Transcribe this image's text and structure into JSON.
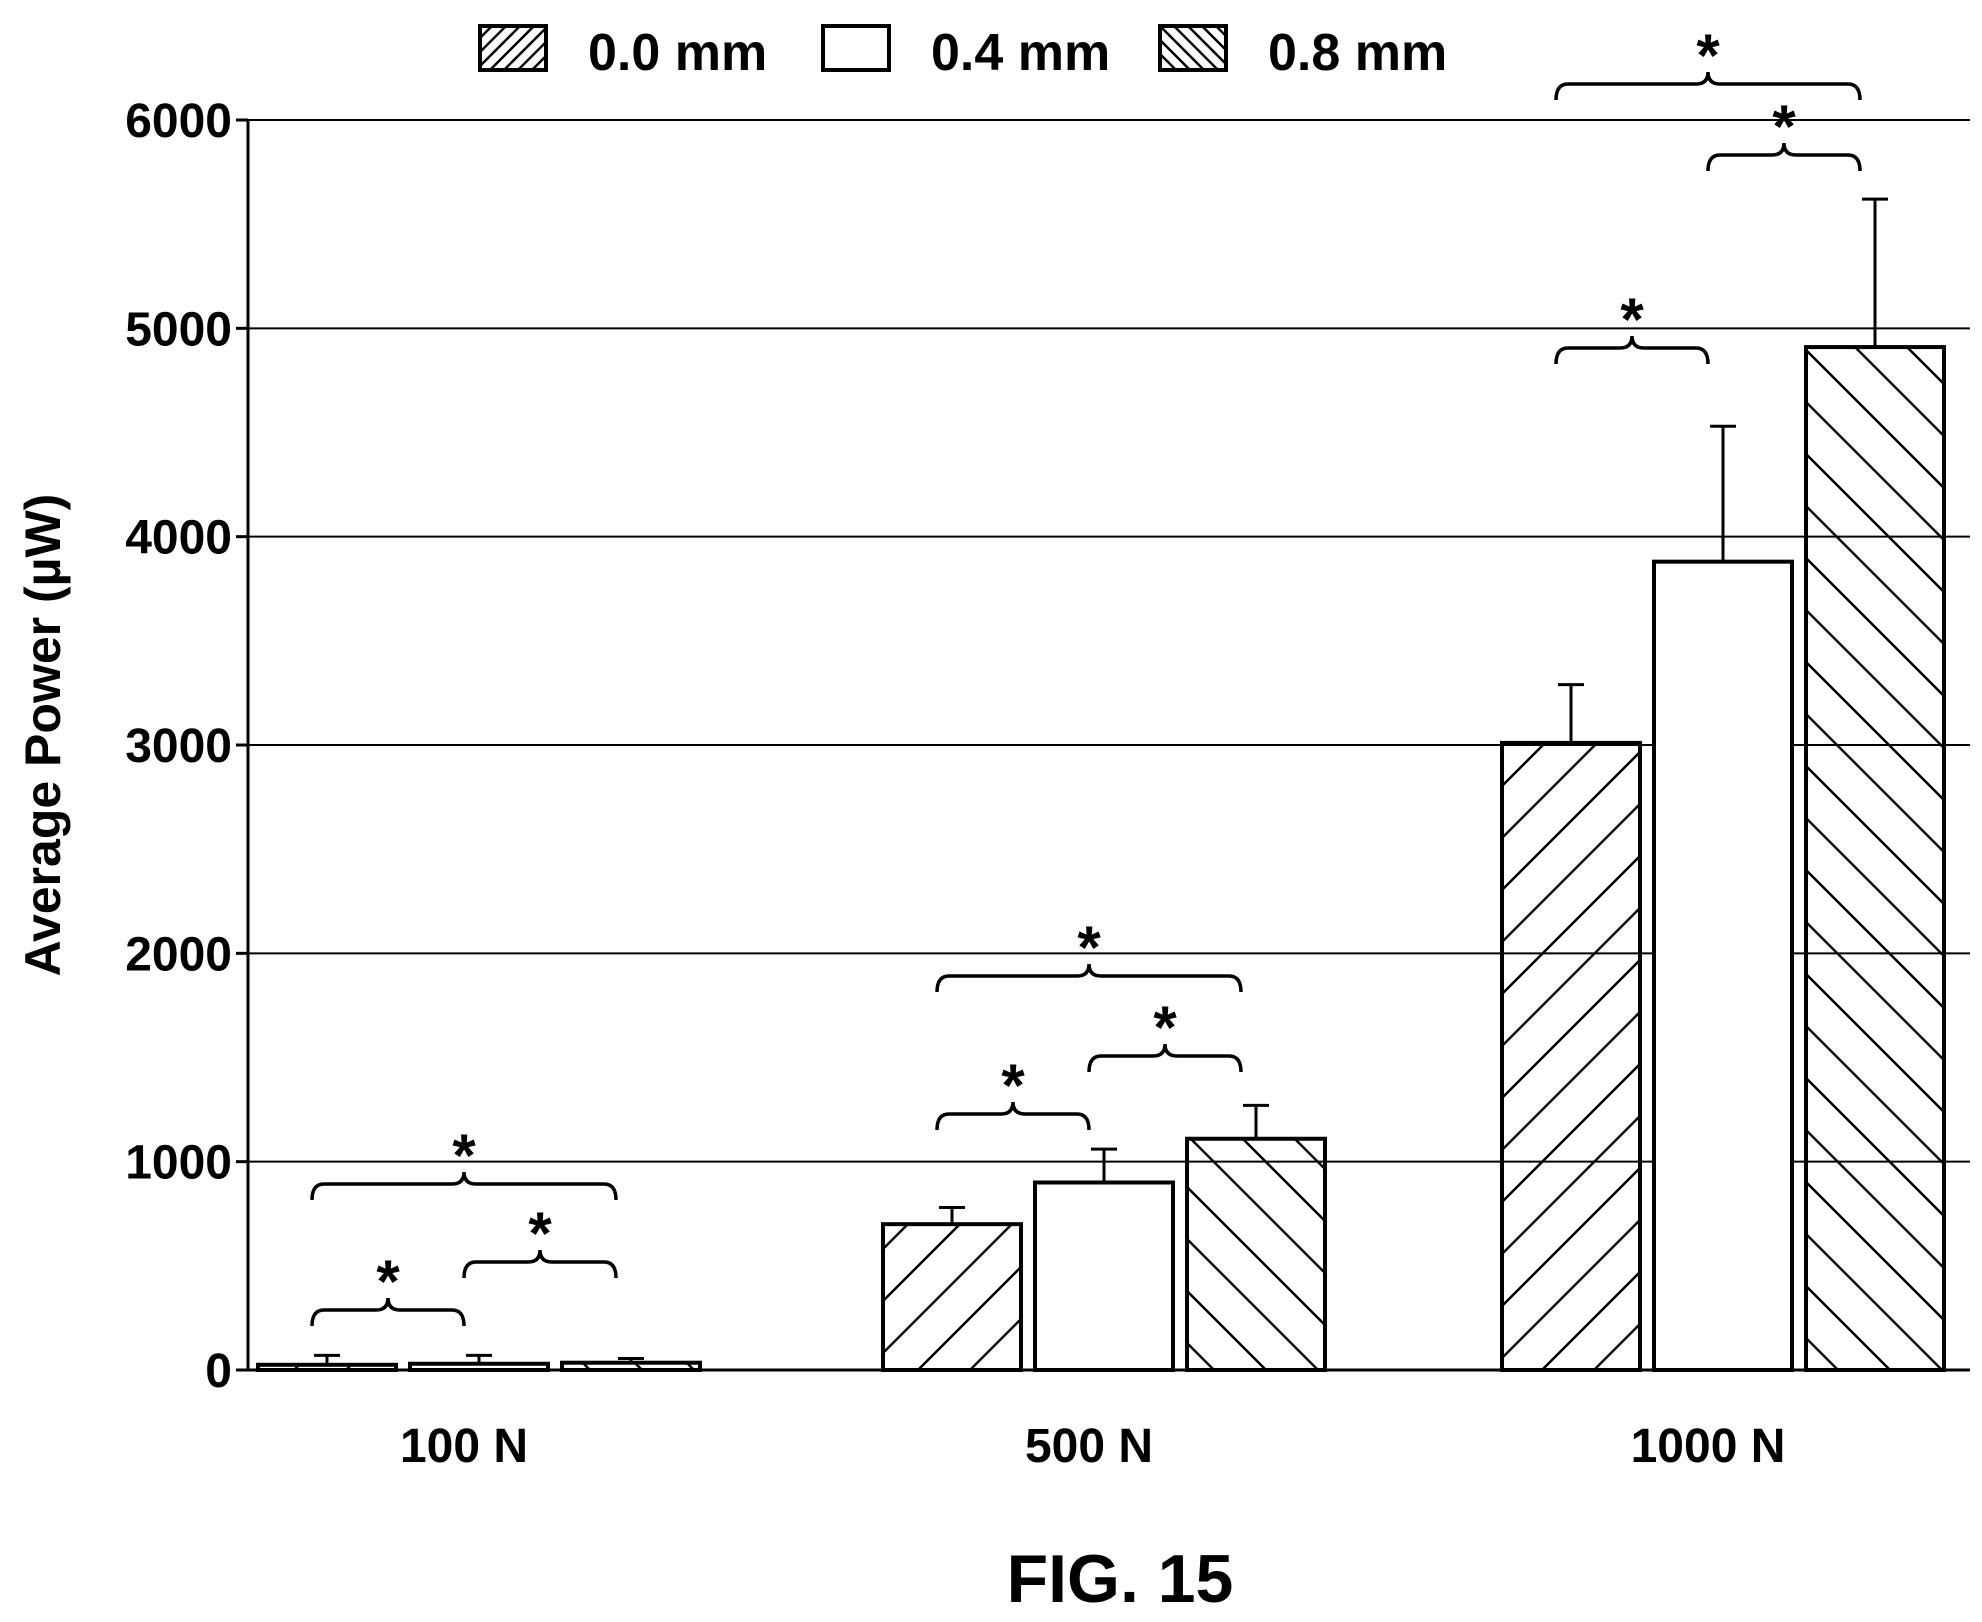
{
  "figure": {
    "label": "FIG. 15"
  },
  "chart_data": {
    "type": "bar",
    "title": "",
    "xlabel": "",
    "ylabel": "Average Power (µW)",
    "ylim": [
      0,
      6000
    ],
    "yticks": [
      "0",
      "1000",
      "2000",
      "3000",
      "4000",
      "5000",
      "6000"
    ],
    "grid": true,
    "legend_position": "top",
    "categories": [
      "100 N",
      "500 N",
      "1000 N"
    ],
    "series": [
      {
        "name": "0.0 mm",
        "pattern": "hatch-forward",
        "values": [
          25,
          700,
          3010
        ],
        "errors": [
          45,
          80,
          280
        ]
      },
      {
        "name": "0.4 mm",
        "pattern": "none",
        "values": [
          30,
          900,
          3880
        ],
        "errors": [
          40,
          160,
          650
        ]
      },
      {
        "name": "0.8 mm",
        "pattern": "hatch-back",
        "values": [
          35,
          1110,
          4910
        ],
        "errors": [
          20,
          160,
          710
        ]
      }
    ],
    "annotations": [
      {
        "category": 0,
        "from_series": 0,
        "to_series": 1,
        "text": "*"
      },
      {
        "category": 0,
        "from_series": 1,
        "to_series": 2,
        "text": "*"
      },
      {
        "category": 0,
        "from_series": 0,
        "to_series": 2,
        "text": "*"
      },
      {
        "category": 1,
        "from_series": 0,
        "to_series": 1,
        "text": "*"
      },
      {
        "category": 1,
        "from_series": 1,
        "to_series": 2,
        "text": "*"
      },
      {
        "category": 1,
        "from_series": 0,
        "to_series": 2,
        "text": "*"
      },
      {
        "category": 2,
        "from_series": 0,
        "to_series": 1,
        "text": "*"
      },
      {
        "category": 2,
        "from_series": 1,
        "to_series": 2,
        "text": "*"
      },
      {
        "category": 2,
        "from_series": 0,
        "to_series": 2,
        "text": "*"
      }
    ]
  }
}
